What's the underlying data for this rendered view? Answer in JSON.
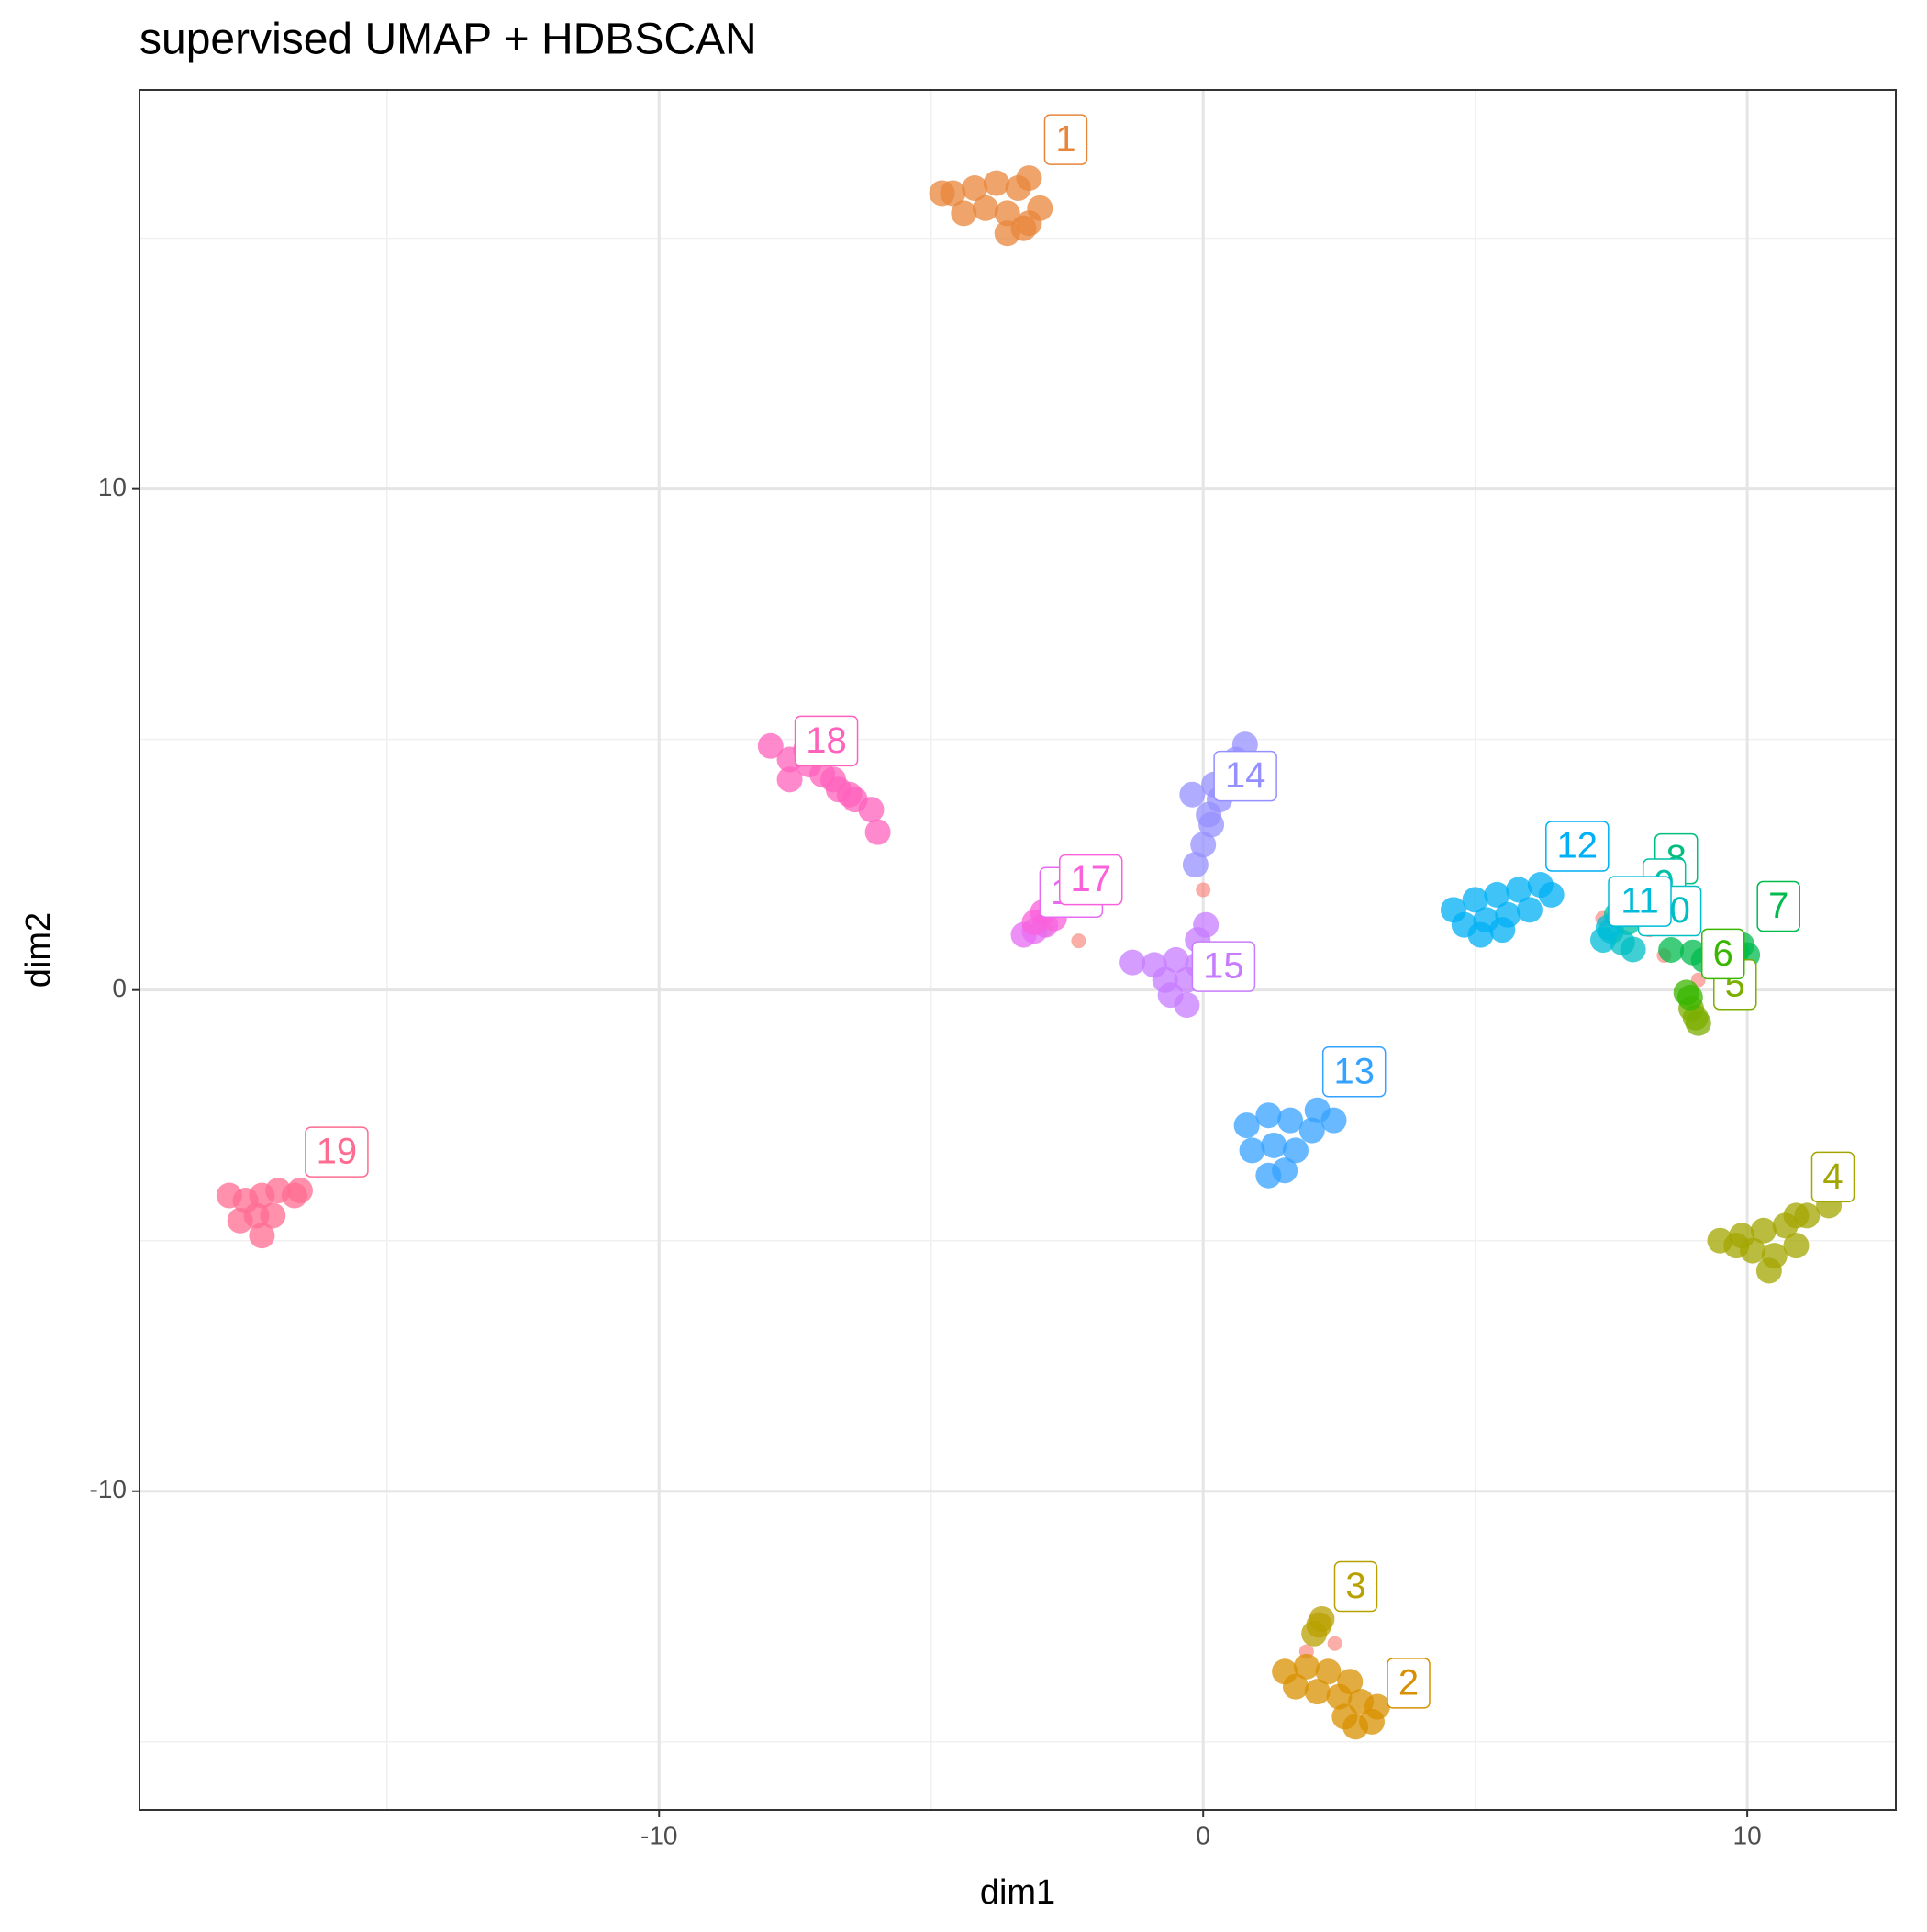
{
  "chart_data": {
    "type": "scatter",
    "title": "supervised UMAP + HDBSCAN",
    "x_label": "dim1",
    "y_label": "dim2",
    "xlim": [
      -19.55,
      12.73
    ],
    "ylim": [
      -16.36,
      17.96
    ],
    "xticks": [
      -10,
      0,
      10
    ],
    "yticks": [
      -10,
      0,
      10
    ],
    "grid": true,
    "series": [
      {
        "color": "#F8766D",
        "x": [
          7.34,
          8.47,
          7.9,
          8.2,
          -2.29,
          -2.9,
          0.0,
          2.42,
          1.9,
          9.1
        ],
        "y": [
          1.43,
          0.69,
          1.5,
          1.2,
          0.98,
          1.2,
          2.0,
          -13.04,
          -13.2,
          0.2
        ]
      },
      {
        "name": "1",
        "color": "#E8853A",
        "x": [
          -3.2,
          -4.6,
          -4.2,
          -3.8,
          -3.4,
          -3.0,
          -4.4,
          -4.0,
          -3.6,
          -3.2,
          -3.6,
          -3.3,
          -4.8
        ],
        "y": [
          16.2,
          15.9,
          16.0,
          16.1,
          16.0,
          15.6,
          15.5,
          15.6,
          15.5,
          15.3,
          15.1,
          15.2,
          15.9
        ]
      },
      {
        "name": "2",
        "color": "#D89000",
        "x": [
          3.1,
          1.5,
          1.9,
          2.3,
          2.7,
          2.1,
          2.5,
          2.9,
          2.6,
          3.2,
          2.8,
          1.7
        ],
        "y": [
          -14.6,
          -13.6,
          -13.5,
          -13.6,
          -13.8,
          -14.0,
          -14.1,
          -14.2,
          -14.5,
          -14.3,
          -14.7,
          -13.9
        ]
      },
      {
        "name": "3",
        "color": "#B8A000",
        "x": [
          2.13,
          2.04,
          2.18
        ],
        "y": [
          -12.67,
          -12.84,
          -12.55
        ]
      },
      {
        "name": "4",
        "color": "#A3A500",
        "x": [
          10.9,
          9.5,
          9.9,
          10.3,
          10.7,
          11.1,
          11.5,
          10.1,
          10.5,
          10.9,
          10.4,
          9.8
        ],
        "y": [
          -4.5,
          -5.0,
          -4.9,
          -4.8,
          -4.7,
          -4.5,
          -4.3,
          -5.2,
          -5.3,
          -5.1,
          -5.6,
          -5.1
        ]
      },
      {
        "name": "5",
        "color": "#7CAE00",
        "x": [
          9.1,
          8.97,
          9.05
        ],
        "y": [
          -0.66,
          -0.37,
          -0.55
        ]
      },
      {
        "name": "6",
        "color": "#39B600",
        "x": [
          8.88,
          8.95
        ],
        "y": [
          -0.05,
          -0.15
        ]
      },
      {
        "name": "7",
        "color": "#00BB4E",
        "x": [
          9.9,
          8.6,
          9.0,
          9.4,
          9.8,
          9.2,
          9.6,
          10.0
        ],
        "y": [
          0.9,
          0.8,
          0.75,
          0.85,
          0.75,
          0.6,
          0.55,
          0.7
        ]
      },
      {
        "name": "8",
        "color": "#00BF7D",
        "x": [
          8.02,
          8.2,
          7.95
        ],
        "y": [
          1.85,
          1.7,
          1.65
        ]
      },
      {
        "name": "9",
        "color": "#00C1A3",
        "x": [
          7.8,
          7.6
        ],
        "y": [
          1.35,
          1.5
        ]
      },
      {
        "name": "10",
        "color": "#00BFC4",
        "x": [
          7.9,
          7.5,
          7.7
        ],
        "y": [
          0.81,
          1.18,
          0.95
        ]
      },
      {
        "name": "11",
        "color": "#00BCD8",
        "x": [
          7.35,
          7.45
        ],
        "y": [
          1.0,
          1.25
        ]
      },
      {
        "name": "12",
        "color": "#00B0F6",
        "x": [
          6.2,
          4.6,
          5.0,
          5.4,
          5.8,
          6.4,
          4.8,
          5.2,
          5.6,
          6.0,
          5.1,
          5.5
        ],
        "y": [
          2.1,
          1.6,
          1.8,
          1.9,
          2.0,
          1.9,
          1.3,
          1.4,
          1.5,
          1.6,
          1.1,
          1.2
        ]
      },
      {
        "name": "13",
        "color": "#35A2FF",
        "x": [
          2.1,
          0.8,
          1.2,
          1.6,
          2.0,
          2.4,
          0.9,
          1.3,
          1.7,
          1.5,
          1.2
        ],
        "y": [
          -2.4,
          -2.7,
          -2.5,
          -2.6,
          -2.8,
          -2.6,
          -3.2,
          -3.1,
          -3.2,
          -3.6,
          -3.7
        ]
      },
      {
        "name": "14",
        "color": "#9590FF",
        "x": [
          0.1,
          -0.14,
          0.0,
          0.15,
          0.3,
          0.45,
          0.6,
          0.77,
          -0.2,
          0.2
        ],
        "y": [
          3.5,
          2.5,
          2.9,
          3.3,
          3.8,
          4.2,
          4.6,
          4.9,
          3.9,
          4.1
        ]
      },
      {
        "name": "15",
        "color": "#C77CFF",
        "x": [
          -0.3,
          -1.3,
          -0.9,
          -0.5,
          -0.1,
          -0.7,
          -0.3,
          -0.1,
          -0.6,
          0.05
        ],
        "y": [
          -0.3,
          0.55,
          0.5,
          0.6,
          0.5,
          0.2,
          0.2,
          1.0,
          -0.1,
          1.3
        ]
      },
      {
        "name": "16",
        "color": "#E76BF3",
        "x": [
          -3.1,
          -3.3,
          -2.9
        ],
        "y": [
          1.18,
          1.1,
          1.3
        ]
      },
      {
        "name": "17",
        "color": "#FA62DB",
        "x": [
          -2.74,
          -2.95,
          -3.1
        ],
        "y": [
          1.43,
          1.55,
          1.35
        ]
      },
      {
        "name": "18",
        "color": "#FF62BC",
        "x": [
          -7.6,
          -7.95,
          -7.6,
          -7.25,
          -7.0,
          -6.7,
          -6.4,
          -6.1,
          -5.98,
          -7.3,
          -6.8,
          -6.5
        ],
        "y": [
          4.2,
          4.87,
          4.6,
          4.5,
          4.3,
          4.0,
          3.8,
          3.6,
          3.15,
          4.8,
          4.2,
          3.9
        ]
      },
      {
        "name": "19",
        "color": "#FF6C91",
        "x": [
          -16.6,
          -17.9,
          -17.6,
          -17.3,
          -17.0,
          -16.7,
          -17.7,
          -17.4,
          -17.1,
          -17.3
        ],
        "y": [
          -4.0,
          -4.1,
          -4.2,
          -4.1,
          -4.0,
          -4.1,
          -4.6,
          -4.5,
          -4.5,
          -4.9
        ]
      }
    ]
  }
}
